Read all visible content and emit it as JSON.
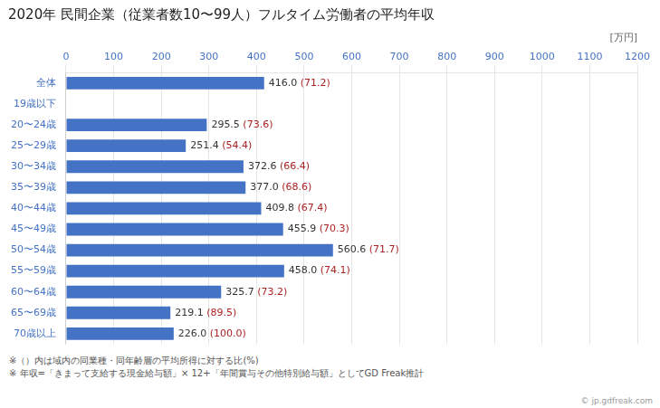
{
  "chart_data": {
    "type": "bar",
    "orientation": "horizontal",
    "title": "2020年 民間企業（従業者数10〜99人）フルタイム労働者の平均年収",
    "xlabel": "[万円]",
    "categories": [
      "全体",
      "19歳以下",
      "20〜24歳",
      "25〜29歳",
      "30〜34歳",
      "35〜39歳",
      "40〜44歳",
      "45〜49歳",
      "50〜54歳",
      "55〜59歳",
      "60〜64歳",
      "65〜69歳",
      "70歳以上"
    ],
    "values": [
      416.0,
      0,
      295.5,
      251.4,
      372.6,
      377.0,
      409.8,
      455.9,
      560.6,
      458.0,
      325.7,
      219.1,
      226.0
    ],
    "value_labels": [
      "416.0",
      null,
      "295.5",
      "251.4",
      "372.6",
      "377.0",
      "409.8",
      "455.9",
      "560.6",
      "458.0",
      "325.7",
      "219.1",
      "226.0"
    ],
    "ratio_labels": [
      "(71.2)",
      null,
      "(73.6)",
      "(54.4)",
      "(66.4)",
      "(68.6)",
      "(67.4)",
      "(70.3)",
      "(71.7)",
      "(74.1)",
      "(73.2)",
      "(89.5)",
      "(100.0)"
    ],
    "ratio_color": "#AA2222",
    "color": "#4472C4",
    "data_labels": true,
    "xlim": [
      0,
      1200
    ],
    "xticks": [
      0,
      100,
      200,
      300,
      400,
      500,
      600,
      700,
      800,
      900,
      1000,
      1100,
      1200
    ],
    "grid": true,
    "footnotes": [
      "※（）内は域内の同業種・同年齢層の平均所得に対する比(%)",
      "※ 年収=「きまって支給する現金給与額」× 12+「年間賞与その他特別給与額」としてGD Freak推計"
    ],
    "watermark": "© jp.gdfreak.com"
  }
}
